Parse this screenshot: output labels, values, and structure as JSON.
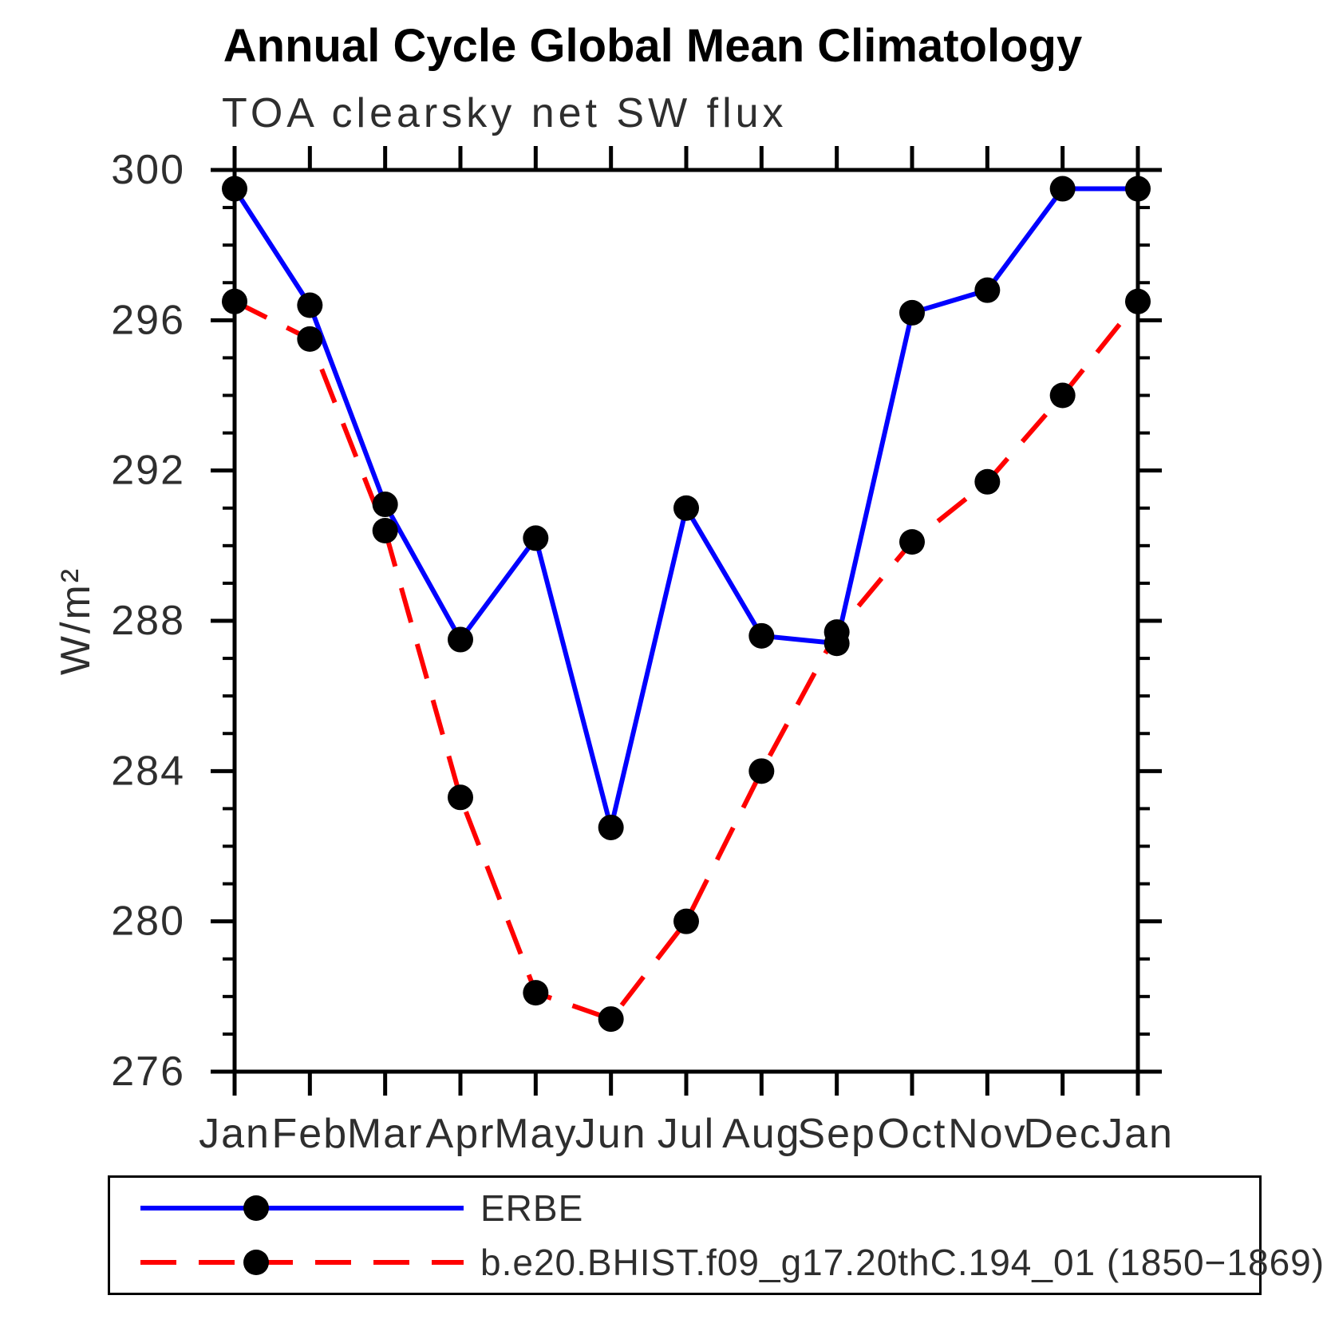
{
  "chart_data": {
    "type": "line",
    "title": "Annual Cycle Global Mean Climatology",
    "subtitle": "TOA clearsky net SW flux",
    "ylabel": "W/m²",
    "xlabel": "",
    "x_categories": [
      "Jan",
      "Feb",
      "Mar",
      "Apr",
      "May",
      "Jun",
      "Jul",
      "Aug",
      "Sep",
      "Oct",
      "Nov",
      "Dec",
      "Jan"
    ],
    "ylim": [
      276,
      300
    ],
    "ytick_major": [
      276,
      280,
      284,
      288,
      292,
      296,
      300
    ],
    "ytick_minor_step": 1,
    "grid": "off",
    "legend_position": "bottom-left-box",
    "frame_color": "#000000",
    "marker": {
      "shape": "circle",
      "color": "#000000",
      "radius": 16
    },
    "series": [
      {
        "name": "ERBE",
        "color": "#0000ff",
        "line_style": "solid",
        "line_width": 6,
        "values": [
          299.5,
          296.4,
          291.1,
          287.5,
          290.2,
          282.5,
          291.0,
          287.6,
          287.4,
          296.2,
          296.8,
          299.5,
          299.5
        ]
      },
      {
        "name": "b.e20.BHIST.f09_g17.20thC.194_01 (1850−1869)",
        "color": "#ff0000",
        "line_style": "dashed",
        "line_width": 6,
        "values": [
          296.5,
          295.5,
          290.4,
          283.3,
          278.1,
          277.4,
          280.0,
          284.0,
          287.7,
          290.1,
          291.7,
          294.0,
          296.5
        ]
      }
    ]
  }
}
